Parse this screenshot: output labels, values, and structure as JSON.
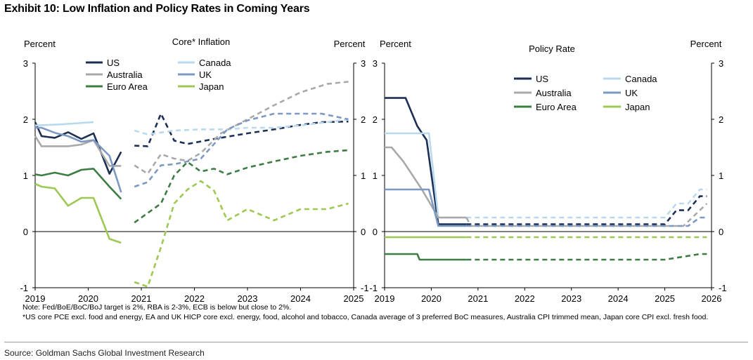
{
  "exhibit_title": "Exhibit 10: Low Inflation and Policy Rates in Coming Years",
  "notes": [
    "Note: Fed/BoE/BoC/BoJ target  is 2%, RBA is 2-3%, ECB is below but close to 2%.",
    "*US core PCE excl. food and energy, EA and UK HICP core excl. energy, food, alcohol and tobacco, Canada average of 3 preferred BoC measures, Australia CPI trimmed mean, Japan core CPI excl. fresh food."
  ],
  "source": "Source: Goldman Sachs Global Investment Research",
  "colors": {
    "US": "#1c2f55",
    "Canada": "#b9d9ee",
    "Australia": "#a9a9a9",
    "UK": "#7d98c2",
    "Euro Area": "#3d7d43",
    "Japan": "#9ec853"
  },
  "chart_data": [
    {
      "type": "line",
      "title": "Core*  Inflation",
      "ylabel_left": "Percent",
      "ylabel_right": "Percent",
      "ylim": [
        -1,
        3
      ],
      "yticks": [
        "3",
        "2",
        "1",
        "0",
        "-1"
      ],
      "xlim": [
        2019,
        2025
      ],
      "xticks": [
        "2019",
        "2020",
        "2021",
        "2022",
        "2023",
        "2024",
        "2025"
      ],
      "forecast_start": 2020.75,
      "legend_columns": [
        [
          "US",
          "Australia",
          "Euro Area"
        ],
        [
          "Canada",
          "UK",
          "Japan"
        ]
      ],
      "series": [
        {
          "name": "US",
          "x": [
            2019,
            2019.12,
            2019.37,
            2019.62,
            2019.87,
            2020.1,
            2020.4,
            2020.62,
            2020.87,
            2021.12,
            2021.37,
            2021.62,
            2021.87,
            2022.37,
            2023,
            2023.5,
            2024,
            2024.4,
            2024.9
          ],
          "y": [
            1.95,
            1.7,
            1.67,
            1.77,
            1.65,
            1.75,
            1.03,
            1.42,
            1.53,
            1.52,
            2.1,
            1.62,
            1.56,
            1.65,
            1.75,
            1.82,
            1.9,
            1.95,
            1.96
          ]
        },
        {
          "name": "Canada",
          "x": [
            2019,
            2019.5,
            2020.1,
            2020.87,
            2021.12,
            2021.62,
            2022.12,
            2022.62,
            2023,
            2023.5,
            2024,
            2024.5,
            2024.9
          ],
          "y": [
            1.89,
            1.91,
            1.95,
            1.8,
            1.73,
            1.8,
            1.82,
            1.82,
            1.85,
            1.85,
            1.89,
            1.95,
            2.0
          ]
        },
        {
          "name": "Australia",
          "x": [
            2019,
            2019.12,
            2019.62,
            2019.87,
            2020.1,
            2020.4,
            2020.62,
            2020.87,
            2021.12,
            2021.37,
            2021.62,
            2021.87,
            2022.12,
            2022.5,
            2023,
            2023.5,
            2024,
            2024.5,
            2024.9
          ],
          "y": [
            1.7,
            1.52,
            1.52,
            1.55,
            1.63,
            1.17,
            1.17,
            1.18,
            1.03,
            1.38,
            1.3,
            1.26,
            1.4,
            1.75,
            2.0,
            2.25,
            2.48,
            2.63,
            2.67
          ]
        },
        {
          "name": "UK",
          "x": [
            2019,
            2019.12,
            2019.37,
            2019.62,
            2019.87,
            2020.1,
            2020.4,
            2020.62,
            2020.87,
            2021.12,
            2021.37,
            2021.62,
            2022.12,
            2022.62,
            2023,
            2023.5,
            2024,
            2024.4,
            2024.9
          ],
          "y": [
            1.85,
            1.85,
            1.76,
            1.7,
            1.6,
            1.63,
            1.35,
            0.7,
            0.8,
            0.88,
            1.18,
            1.2,
            1.3,
            1.82,
            1.98,
            2.1,
            2.1,
            2.1,
            2.0
          ]
        },
        {
          "name": "Euro Area",
          "x": [
            2019,
            2019.12,
            2019.37,
            2019.62,
            2019.87,
            2020.1,
            2020.4,
            2020.62,
            2020.87,
            2021.12,
            2021.37,
            2021.62,
            2021.87,
            2022.12,
            2022.37,
            2022.62,
            2023,
            2023.5,
            2024,
            2024.5,
            2024.9
          ],
          "y": [
            1.02,
            1.0,
            1.05,
            1.0,
            1.1,
            1.12,
            0.8,
            0.58,
            0.16,
            0.33,
            0.5,
            1.0,
            1.24,
            1.07,
            1.12,
            1.02,
            1.14,
            1.25,
            1.35,
            1.42,
            1.45
          ]
        },
        {
          "name": "Japan",
          "x": [
            2019,
            2019.12,
            2019.37,
            2019.62,
            2019.87,
            2020.1,
            2020.4,
            2020.62,
            2020.87,
            2021.12,
            2021.37,
            2021.62,
            2021.87,
            2022.12,
            2022.37,
            2022.62,
            2023,
            2023.5,
            2024,
            2024.5,
            2024.9
          ],
          "y": [
            0.85,
            0.8,
            0.77,
            0.46,
            0.6,
            0.6,
            -0.13,
            -0.2,
            -0.9,
            -0.98,
            -0.28,
            0.5,
            0.75,
            0.9,
            0.73,
            0.2,
            0.4,
            0.2,
            0.4,
            0.4,
            0.5
          ]
        }
      ]
    },
    {
      "type": "line",
      "title": "Policy Rate",
      "ylabel_left": "Percent",
      "ylabel_right": "Percent",
      "ylim": [
        -1,
        3
      ],
      "yticks": [
        "3",
        "2",
        "1",
        "0",
        "-1"
      ],
      "xlim": [
        2019,
        2026
      ],
      "xticks": [
        "2019",
        "2020",
        "2021",
        "2022",
        "2023",
        "2024",
        "2025",
        "2026"
      ],
      "forecast_start": 2020.75,
      "legend_columns": [
        [
          "US",
          "Australia",
          "Euro Area"
        ],
        [
          "Canada",
          "UK",
          "Japan"
        ]
      ],
      "series": [
        {
          "name": "US",
          "x": [
            2019,
            2019.45,
            2019.7,
            2019.9,
            2020.15,
            2020.75,
            2025,
            2025.25,
            2025.5,
            2025.75,
            2025.9
          ],
          "y": [
            2.38,
            2.38,
            1.88,
            1.63,
            0.13,
            0.13,
            0.13,
            0.38,
            0.38,
            0.63,
            0.63
          ]
        },
        {
          "name": "Canada",
          "x": [
            2019,
            2019.95,
            2020.15,
            2020.75,
            2025,
            2025.25,
            2025.5,
            2025.75,
            2025.9
          ],
          "y": [
            1.75,
            1.75,
            0.25,
            0.25,
            0.25,
            0.5,
            0.5,
            0.75,
            0.75
          ]
        },
        {
          "name": "Australia",
          "x": [
            2019,
            2019.15,
            2019.4,
            2019.6,
            2019.8,
            2020.15,
            2020.75,
            2020.85,
            2025,
            2025.4,
            2025.9
          ],
          "y": [
            1.5,
            1.5,
            1.25,
            1.0,
            0.75,
            0.25,
            0.25,
            0.1,
            0.1,
            0.1,
            0.5
          ]
        },
        {
          "name": "UK",
          "x": [
            2019,
            2019.95,
            2020.15,
            2020.75,
            2025,
            2025.5,
            2025.75,
            2025.9
          ],
          "y": [
            0.75,
            0.75,
            0.1,
            0.1,
            0.1,
            0.1,
            0.25,
            0.25
          ]
        },
        {
          "name": "Euro Area",
          "x": [
            2019,
            2019.7,
            2019.75,
            2020.75,
            2025,
            2025.75,
            2025.9
          ],
          "y": [
            -0.4,
            -0.4,
            -0.5,
            -0.5,
            -0.5,
            -0.4,
            -0.4
          ]
        },
        {
          "name": "Japan",
          "x": [
            2019,
            2020.75,
            2025.9
          ],
          "y": [
            -0.1,
            -0.1,
            -0.1
          ]
        }
      ]
    }
  ]
}
